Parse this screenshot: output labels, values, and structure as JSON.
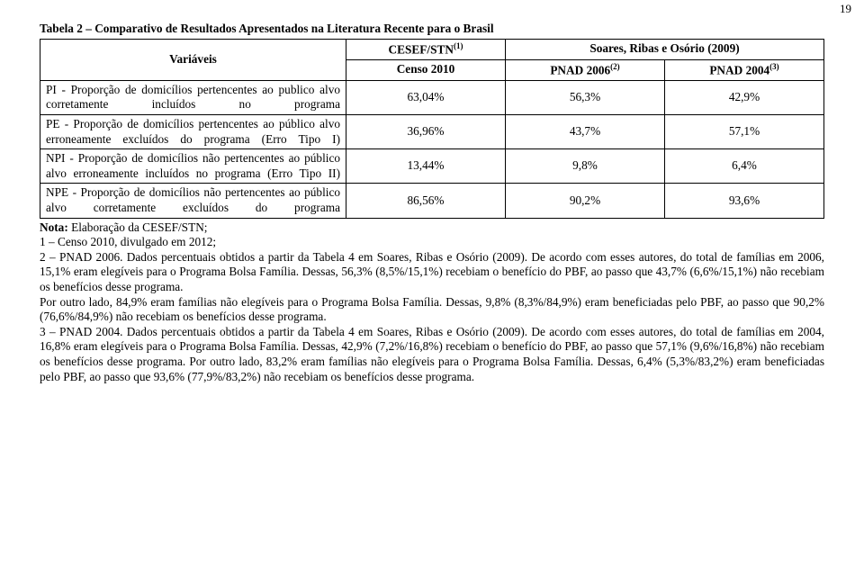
{
  "page_number": "19",
  "title": "Tabela 2 – Comparativo de Resultados Apresentados na Literatura Recente para o Brasil",
  "table": {
    "type": "table",
    "background_color": "#ffffff",
    "border_color": "#000000",
    "font_family": "Times New Roman",
    "font_size_pt": 10,
    "header": {
      "variaveis": "Variáveis",
      "cesef_label": "CESEF/STN",
      "cesef_sup": "(1)",
      "soares_label": "Soares, Ribas e Osório (2009)",
      "censo": "Censo 2010",
      "pnad2006_label": "PNAD 2006",
      "pnad2006_sup": "(2)",
      "pnad2004_label": "PNAD 2004",
      "pnad2004_sup": "(3)"
    },
    "rows": [
      {
        "label": "PI - Proporção de domicílios pertencentes ao publico alvo corretamente incluídos no programa",
        "censo": "63,04%",
        "pnad2006": "56,3%",
        "pnad2004": "42,9%"
      },
      {
        "label": "PE - Proporção de domicílios pertencentes ao público alvo erroneamente excluídos do programa (Erro Tipo I)",
        "censo": "36,96%",
        "pnad2006": "43,7%",
        "pnad2004": "57,1%"
      },
      {
        "label": "NPI - Proporção de domicílios não pertencentes ao público alvo erroneamente incluídos no programa (Erro Tipo II)",
        "censo": "13,44%",
        "pnad2006": "9,8%",
        "pnad2004": "6,4%"
      },
      {
        "label": "NPE - Proporção de domicílios não pertencentes ao público alvo corretamente excluídos do programa",
        "censo": "86,56%",
        "pnad2006": "90,2%",
        "pnad2004": "93,6%"
      }
    ]
  },
  "notes": {
    "prefix_bold": "Nota:",
    "prefix_rest": " Elaboração da CESEF/STN;",
    "line1": "1 – Censo 2010, divulgado em 2012;",
    "line2": "2 – PNAD 2006. Dados percentuais obtidos a partir da Tabela 4 em Soares, Ribas e Osório (2009). De acordo com esses autores, do total de famílias em 2006, 15,1% eram elegíveis para o Programa Bolsa Família. Dessas, 56,3% (8,5%/15,1%) recebiam o benefício do PBF, ao passo que 43,7% (6,6%/15,1%) não recebiam os benefícios desse programa.",
    "line3": "Por outro lado, 84,9% eram famílias não elegíveis para o Programa Bolsa Família. Dessas, 9,8% (8,3%/84,9%) eram beneficiadas pelo PBF, ao passo que 90,2% (76,6%/84,9%) não recebiam os benefícios desse programa.",
    "line4": "3 – PNAD 2004. Dados percentuais obtidos a partir da Tabela 4 em Soares, Ribas e Osório (2009). De acordo com esses autores, do total de famílias em 2004, 16,8% eram elegíveis para o Programa Bolsa Família. Dessas, 42,9% (7,2%/16,8%) recebiam o benefício do PBF, ao passo que 57,1% (9,6%/16,8%) não recebiam os benefícios desse programa. Por outro lado, 83,2% eram famílias não elegíveis para o Programa Bolsa Família. Dessas, 6,4% (5,3%/83,2%) eram beneficiadas pelo PBF, ao passo que 93,6% (77,9%/83,2%) não recebiam os benefícios desse programa."
  }
}
